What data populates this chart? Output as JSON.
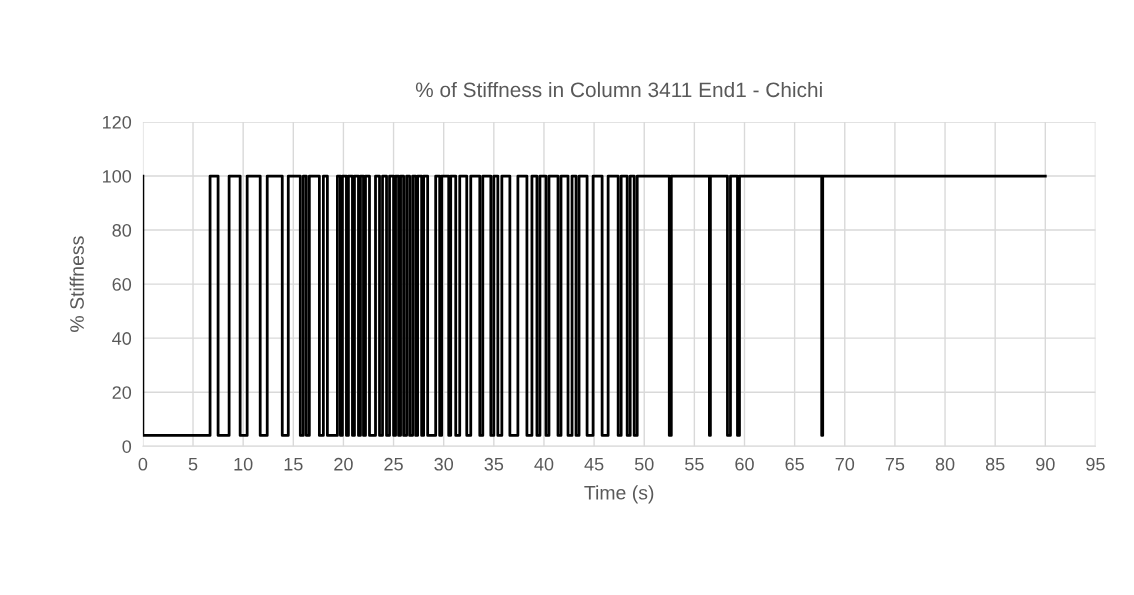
{
  "chart_data": {
    "type": "step",
    "title": "% of Stiffness in Column 3411 End1 - Chichi",
    "xlabel": "Time (s)",
    "ylabel": "% Stiffness",
    "series": [
      {
        "color": "#000000",
        "x": [
          0,
          0,
          6.7,
          7.5,
          8.6,
          9.7,
          10.4,
          11.7,
          12.4,
          13.9,
          14.5,
          15.7,
          16.0,
          16.3,
          16.6,
          17.6,
          18.0,
          18.4,
          19.4,
          19.7,
          19.9,
          20.3,
          20.5,
          20.9,
          21.1,
          21.5,
          21.7,
          22.0,
          22.2,
          22.6,
          23.2,
          23.6,
          23.9,
          24.3,
          24.6,
          25.0,
          25.2,
          25.5,
          25.7,
          26.0,
          26.3,
          26.6,
          26.9,
          27.2,
          27.4,
          27.8,
          28.0,
          28.4,
          29.2,
          29.6,
          29.8,
          30.5,
          30.7,
          31.2,
          31.6,
          32.3,
          32.7,
          33.6,
          33.9,
          34.7,
          35.0,
          35.4,
          35.8,
          36.6,
          37.4,
          38.3,
          38.8,
          39.3,
          39.6,
          40.2,
          40.5,
          41.4,
          41.7,
          42.4,
          42.8,
          43.2,
          43.5,
          44.3,
          44.9,
          45.8,
          46.4,
          47.4,
          47.7,
          48.3,
          48.6,
          49.0,
          49.3,
          52.5,
          52.7,
          56.5,
          56.6,
          58.3,
          58.6,
          59.3,
          59.5,
          67.7,
          67.8,
          90
        ],
        "values": [
          100,
          4,
          100,
          4,
          100,
          4,
          100,
          4,
          100,
          4,
          100,
          4,
          100,
          4,
          100,
          4,
          100,
          4,
          100,
          4,
          100,
          4,
          100,
          4,
          100,
          4,
          100,
          4,
          100,
          4,
          100,
          4,
          100,
          4,
          100,
          4,
          100,
          4,
          100,
          4,
          100,
          4,
          100,
          4,
          100,
          4,
          100,
          4,
          100,
          4,
          100,
          4,
          100,
          4,
          100,
          4,
          100,
          4,
          100,
          4,
          100,
          4,
          100,
          4,
          100,
          4,
          100,
          4,
          100,
          4,
          100,
          4,
          100,
          4,
          100,
          4,
          100,
          4,
          100,
          4,
          100,
          4,
          100,
          4,
          100,
          4,
          100,
          4,
          100,
          4,
          100,
          4,
          100,
          4,
          100,
          4,
          100,
          100
        ]
      }
    ],
    "xlim": [
      0,
      95
    ],
    "xticks": [
      0,
      5,
      10,
      15,
      20,
      25,
      30,
      35,
      40,
      45,
      50,
      55,
      60,
      65,
      70,
      75,
      80,
      85,
      90,
      95
    ],
    "ylim": [
      0,
      120
    ],
    "yticks": [
      0,
      20,
      40,
      60,
      80,
      100,
      120
    ],
    "grid": true
  }
}
